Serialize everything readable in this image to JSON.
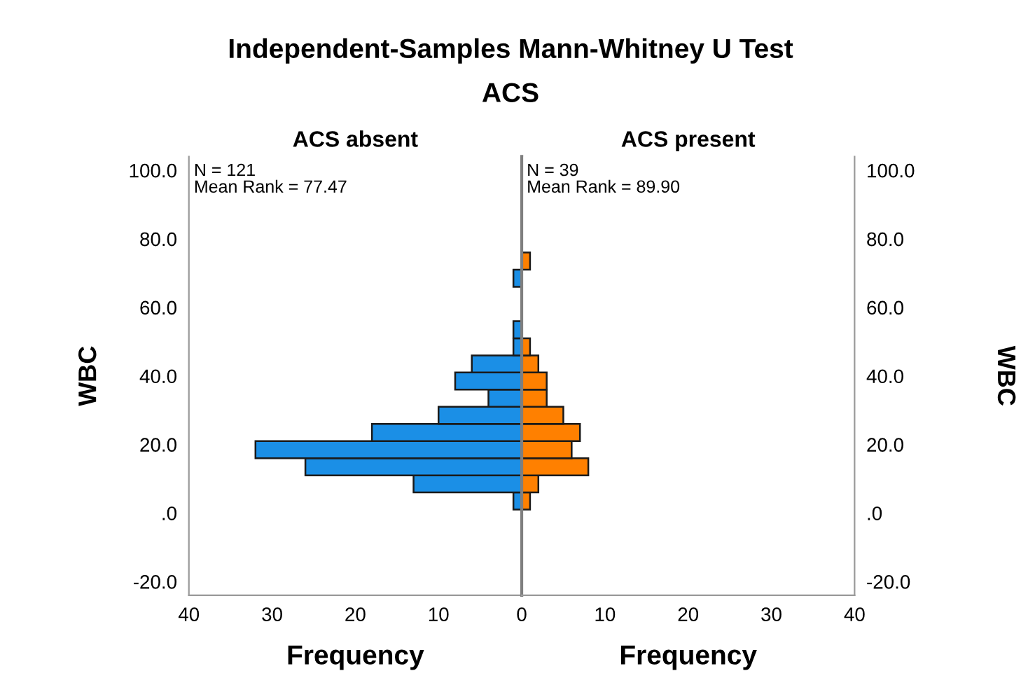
{
  "chart_data": [
    {
      "type": "histogram",
      "orientation": "horizontal",
      "title": "Independent-Samples Mann-Whitney U Test",
      "subtitle": "ACS",
      "xlabel": "Frequency",
      "ylabel": "WBC",
      "legend": false,
      "grid": false,
      "series": [
        {
          "name": "ACS absent",
          "color": "#1b8fe6",
          "values": [
            1,
            13,
            26,
            32,
            18,
            10,
            4,
            8,
            6,
            1,
            1,
            0,
            1
          ]
        }
      ],
      "bins": [
        1,
        6,
        11,
        16,
        21,
        26,
        31,
        36,
        41,
        46,
        51,
        56,
        66,
        71
      ],
      "annotations": [
        "N = 121",
        "Mean Rank = 77.47"
      ],
      "xlim": [
        40,
        0
      ],
      "xticks": [
        40,
        30,
        20,
        10,
        0
      ],
      "ylim": [
        -24,
        104
      ],
      "yticks": [
        {
          "value": 100,
          "label": "100.0"
        },
        {
          "value": 80,
          "label": "80.0"
        },
        {
          "value": 60,
          "label": "60.0"
        },
        {
          "value": 40,
          "label": "40.0"
        },
        {
          "value": 20,
          "label": "20.0"
        },
        {
          "value": 0,
          "label": ".0"
        },
        {
          "value": -20,
          "label": "-20.0"
        }
      ]
    },
    {
      "type": "histogram",
      "orientation": "horizontal",
      "xlabel": "Frequency",
      "ylabel": "WBC",
      "legend": false,
      "grid": false,
      "series": [
        {
          "name": "ACS present",
          "color": "#ff8000",
          "values": [
            1,
            2,
            8,
            6,
            7,
            5,
            3,
            3,
            2,
            1,
            0,
            1
          ]
        }
      ],
      "bins": [
        1,
        6,
        11,
        16,
        21,
        26,
        31,
        36,
        41,
        46,
        51,
        71,
        76
      ],
      "annotations": [
        "N = 39",
        "Mean Rank = 89.90"
      ],
      "xlim": [
        0,
        40
      ],
      "xticks": [
        10,
        20,
        30,
        40
      ],
      "ylim": [
        -24,
        104
      ],
      "yticks": [
        {
          "value": 100,
          "label": "100.0"
        },
        {
          "value": 80,
          "label": "80.0"
        },
        {
          "value": 60,
          "label": "60.0"
        },
        {
          "value": 40,
          "label": "40.0"
        },
        {
          "value": 20,
          "label": "20.0"
        },
        {
          "value": 0,
          "label": ".0"
        },
        {
          "value": -20,
          "label": "-20.0"
        }
      ]
    }
  ]
}
